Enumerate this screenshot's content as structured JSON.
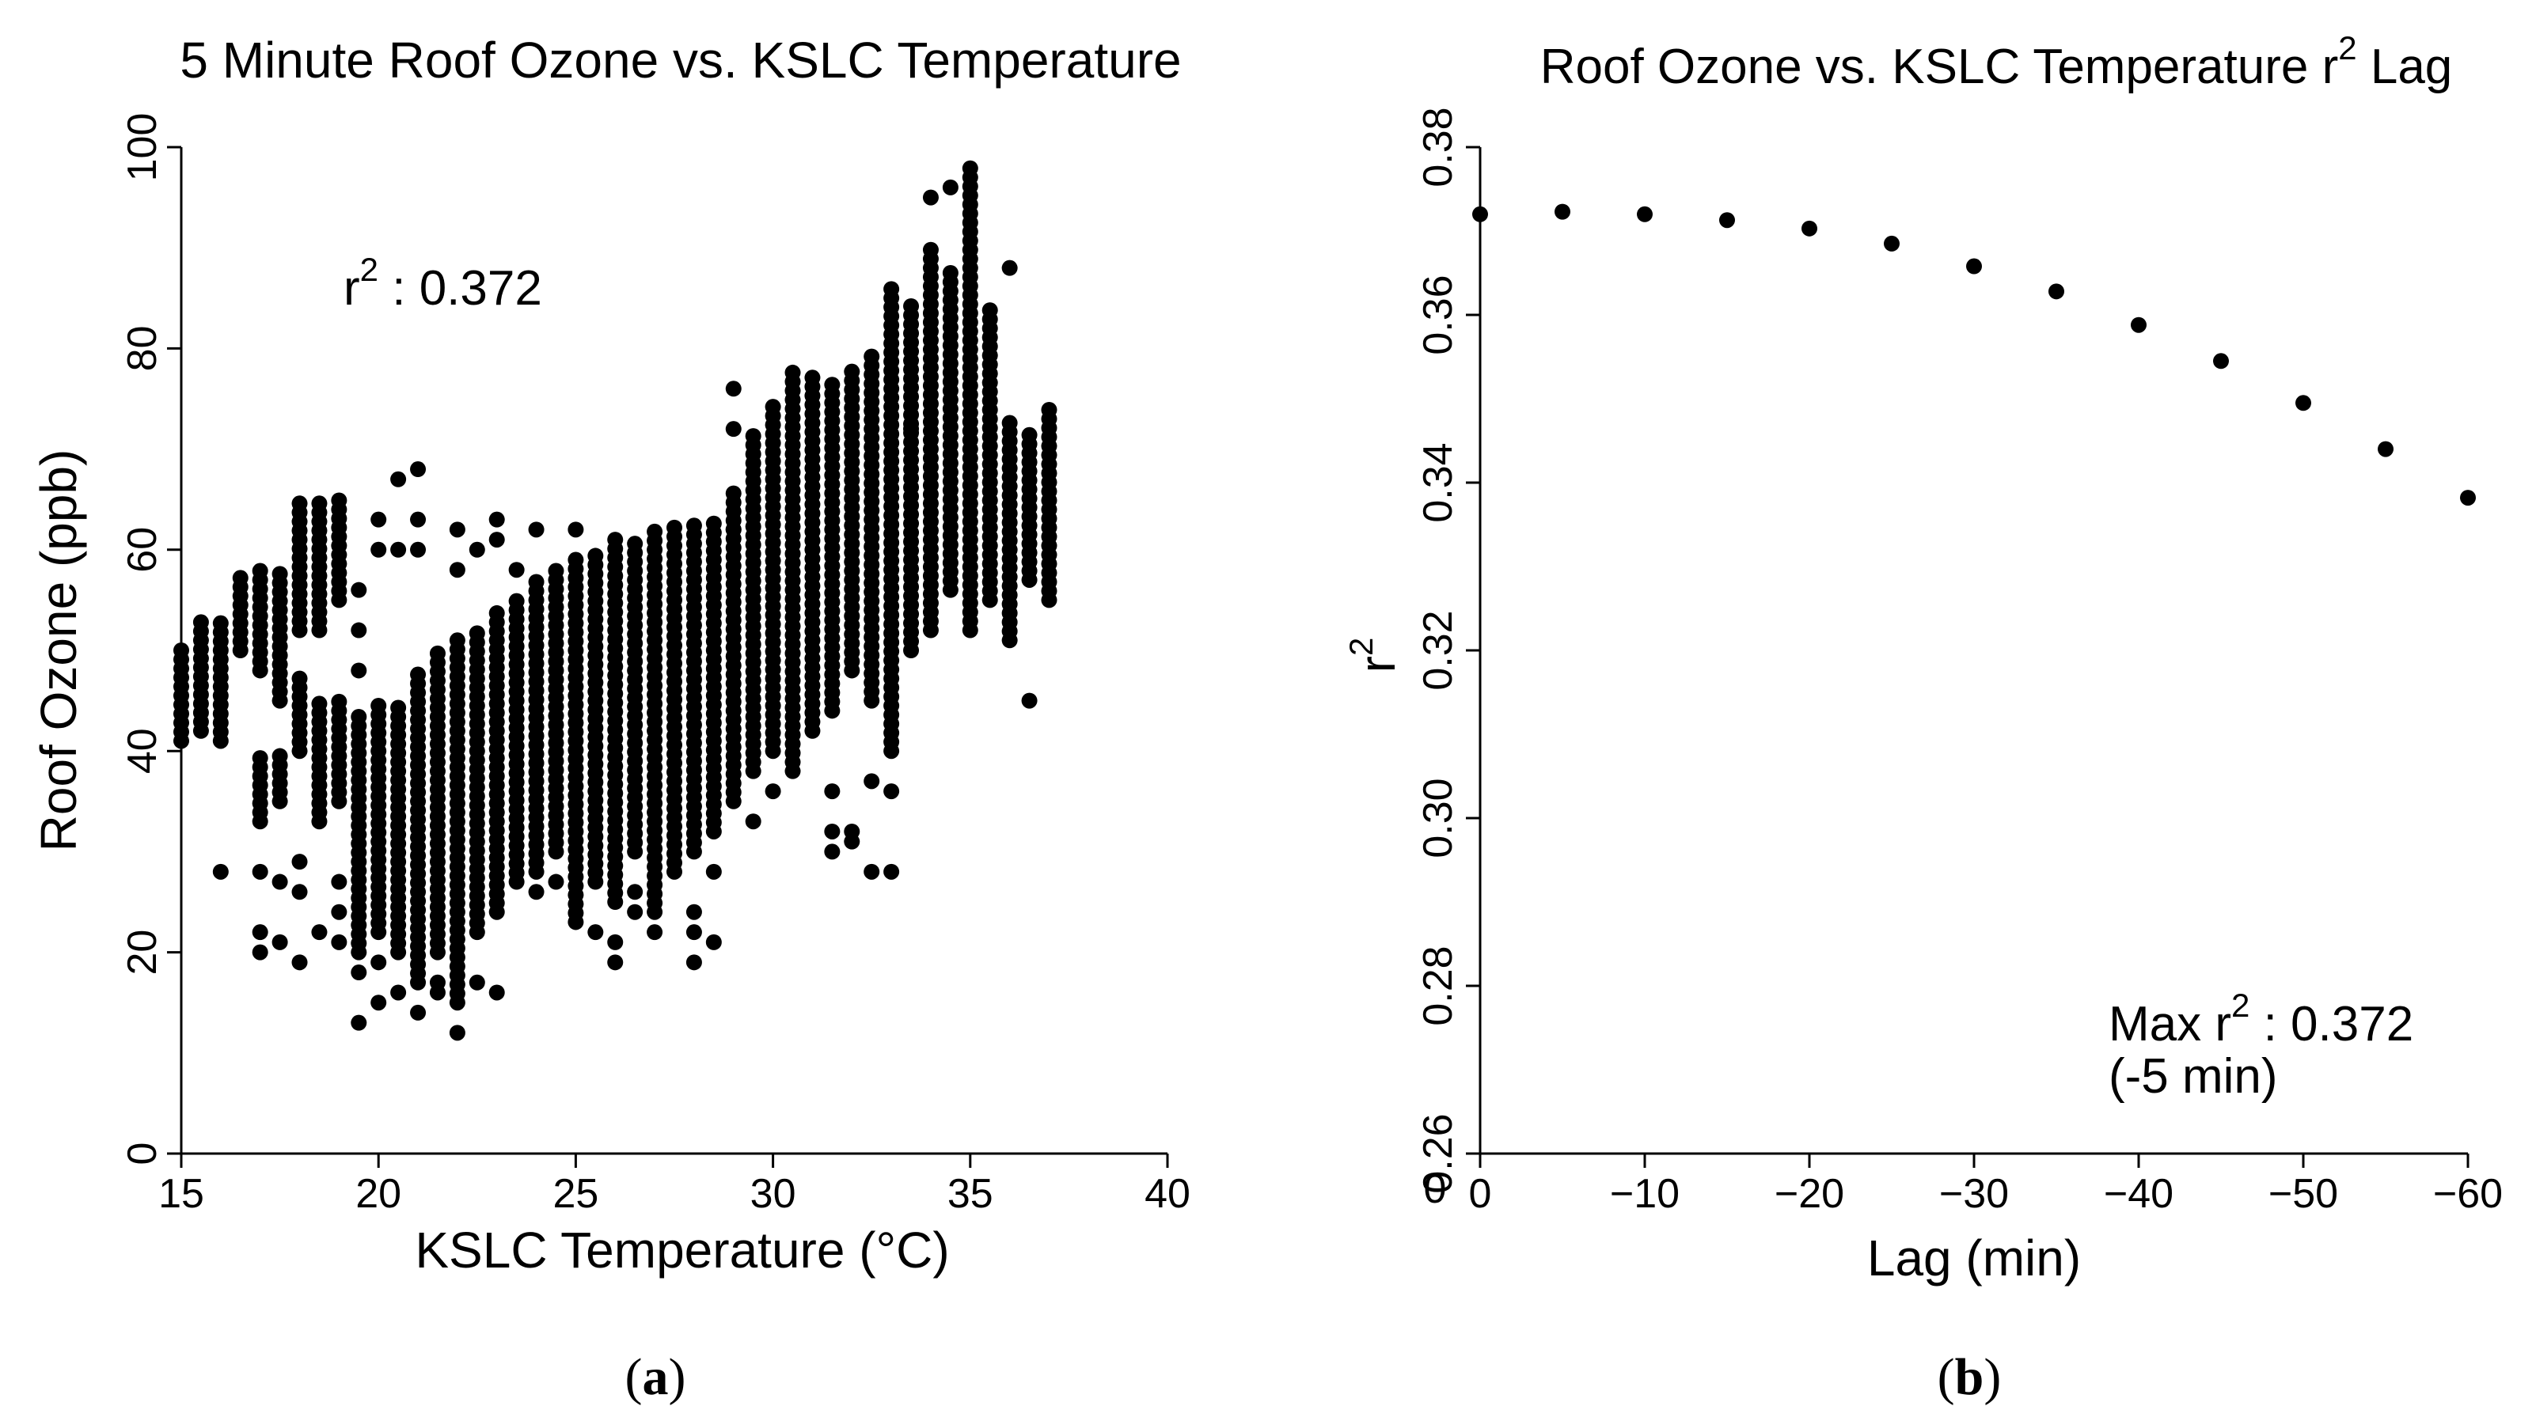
{
  "chart_data": [
    {
      "type": "scatter",
      "title": "5 Minute Roof Ozone vs. KSLC Temperature",
      "xlabel": "KSLC Temperature (°C)",
      "ylabel": "Roof Ozone (ppb)",
      "xlim": [
        15,
        40
      ],
      "ylim": [
        0,
        100
      ],
      "xticks": [
        "15",
        "20",
        "25",
        "30",
        "35",
        "40"
      ],
      "yticks": [
        "0",
        "20",
        "40",
        "60",
        "80",
        "100"
      ],
      "annotation": {
        "base": "r",
        "sup": "2",
        "rest": " : 0.372"
      },
      "panel_label": {
        "open": "(",
        "letter": "a",
        "close": ")"
      },
      "point_columns": [
        {
          "x": 15.0,
          "ranges": [
            [
              41,
              50
            ]
          ]
        },
        {
          "x": 15.5,
          "ranges": [
            [
              42,
              53
            ]
          ]
        },
        {
          "x": 16.0,
          "ranges": [
            [
              41,
              53
            ]
          ],
          "extra": [
            28
          ]
        },
        {
          "x": 16.5,
          "ranges": [
            [
              50,
              58
            ]
          ]
        },
        {
          "x": 17.0,
          "ranges": [
            [
              33,
              40
            ],
            [
              48,
              58
            ]
          ],
          "extra": [
            20,
            22,
            28
          ]
        },
        {
          "x": 17.5,
          "ranges": [
            [
              35,
              40
            ],
            [
              45,
              58
            ]
          ],
          "extra": [
            21,
            27
          ]
        },
        {
          "x": 18.0,
          "ranges": [
            [
              40,
              48
            ],
            [
              52,
              65
            ]
          ],
          "extra": [
            19,
            26,
            29
          ]
        },
        {
          "x": 18.5,
          "ranges": [
            [
              33,
              45
            ],
            [
              52,
              65
            ]
          ],
          "extra": [
            22
          ]
        },
        {
          "x": 19.0,
          "ranges": [
            [
              35,
              45
            ],
            [
              55,
              65
            ]
          ],
          "extra": [
            21,
            24,
            27
          ]
        },
        {
          "x": 19.5,
          "ranges": [
            [
              20,
              44
            ]
          ],
          "extra": [
            13,
            18,
            48,
            52,
            56
          ]
        },
        {
          "x": 20.0,
          "ranges": [
            [
              22,
              45
            ]
          ],
          "extra": [
            15,
            19,
            60,
            63
          ]
        },
        {
          "x": 20.5,
          "ranges": [
            [
              20,
              45
            ]
          ],
          "extra": [
            16,
            60,
            67
          ]
        },
        {
          "x": 21.0,
          "ranges": [
            [
              17,
              48
            ]
          ],
          "extra": [
            14,
            60,
            63,
            68
          ]
        },
        {
          "x": 21.5,
          "ranges": [
            [
              20,
              50
            ]
          ],
          "extra": [
            16,
            17
          ]
        },
        {
          "x": 22.0,
          "ranges": [
            [
              15,
              51
            ]
          ],
          "extra": [
            12,
            58,
            62
          ]
        },
        {
          "x": 22.5,
          "ranges": [
            [
              22,
              52
            ]
          ],
          "extra": [
            17,
            60
          ]
        },
        {
          "x": 23.0,
          "ranges": [
            [
              24,
              54
            ]
          ],
          "extra": [
            16,
            61,
            63
          ]
        },
        {
          "x": 23.5,
          "ranges": [
            [
              27,
              55
            ]
          ],
          "extra": [
            58
          ]
        },
        {
          "x": 24.0,
          "ranges": [
            [
              28,
              57
            ]
          ],
          "extra": [
            26,
            62
          ]
        },
        {
          "x": 24.5,
          "ranges": [
            [
              30,
              58
            ]
          ],
          "extra": [
            27
          ]
        },
        {
          "x": 25.0,
          "ranges": [
            [
              23,
              59
            ]
          ],
          "extra": [
            62
          ]
        },
        {
          "x": 25.5,
          "ranges": [
            [
              27,
              60
            ]
          ],
          "extra": [
            22
          ]
        },
        {
          "x": 26.0,
          "ranges": [
            [
              25,
              61
            ]
          ],
          "extra": [
            19,
            21
          ]
        },
        {
          "x": 26.5,
          "ranges": [
            [
              30,
              61
            ]
          ],
          "extra": [
            24,
            26
          ]
        },
        {
          "x": 27.0,
          "ranges": [
            [
              24,
              62
            ]
          ],
          "extra": [
            22
          ]
        },
        {
          "x": 27.5,
          "ranges": [
            [
              28,
              63
            ]
          ]
        },
        {
          "x": 28.0,
          "ranges": [
            [
              30,
              63
            ]
          ],
          "extra": [
            19,
            22,
            24
          ]
        },
        {
          "x": 28.5,
          "ranges": [
            [
              32,
              63
            ]
          ],
          "extra": [
            21,
            28
          ]
        },
        {
          "x": 29.0,
          "ranges": [
            [
              35,
              66
            ]
          ],
          "extra": [
            62,
            72,
            76
          ]
        },
        {
          "x": 29.5,
          "ranges": [
            [
              38,
              72
            ]
          ],
          "extra": [
            33
          ]
        },
        {
          "x": 30.0,
          "ranges": [
            [
              40,
              75
            ]
          ],
          "extra": [
            36
          ]
        },
        {
          "x": 30.5,
          "ranges": [
            [
              38,
              78
            ]
          ]
        },
        {
          "x": 31.0,
          "ranges": [
            [
              42,
              78
            ]
          ]
        },
        {
          "x": 31.5,
          "ranges": [
            [
              44,
              77
            ]
          ],
          "extra": [
            30,
            32,
            36
          ]
        },
        {
          "x": 32.0,
          "ranges": [
            [
              48,
              78
            ]
          ],
          "extra": [
            31,
            32
          ]
        },
        {
          "x": 32.5,
          "ranges": [
            [
              45,
              80
            ]
          ],
          "extra": [
            28,
            37
          ]
        },
        {
          "x": 33.0,
          "ranges": [
            [
              40,
              86
            ]
          ],
          "extra": [
            28,
            36
          ]
        },
        {
          "x": 33.5,
          "ranges": [
            [
              50,
              85
            ]
          ],
          "extra": [
            72
          ]
        },
        {
          "x": 34.0,
          "ranges": [
            [
              52,
              90
            ]
          ],
          "extra": [
            95
          ]
        },
        {
          "x": 34.5,
          "ranges": [
            [
              56,
              88
            ]
          ],
          "extra": [
            96
          ]
        },
        {
          "x": 35.0,
          "ranges": [
            [
              52,
              98
            ]
          ]
        },
        {
          "x": 35.5,
          "ranges": [
            [
              55,
              84
            ]
          ]
        },
        {
          "x": 36.0,
          "ranges": [
            [
              51,
              73
            ]
          ],
          "extra": [
            88
          ]
        },
        {
          "x": 36.5,
          "ranges": [
            [
              57,
              72
            ]
          ],
          "extra": [
            45
          ]
        },
        {
          "x": 37.0,
          "ranges": [
            [
              55,
              74
            ]
          ]
        }
      ]
    },
    {
      "type": "scatter",
      "title": {
        "base": "Roof Ozone vs. KSLC Temperature r",
        "sup": "2",
        "rest": "  Lag"
      },
      "xlabel": "Lag (min)",
      "ylabel": {
        "base": "r",
        "sup": "2"
      },
      "xlim": [
        0,
        -60
      ],
      "ylim": [
        0.26,
        0.38
      ],
      "xticks": [
        "0",
        "−10",
        "−20",
        "−30",
        "−40",
        "−50",
        "−60"
      ],
      "yticks": [
        "0.26",
        "0.28",
        "0.30",
        "0.32",
        "0.34",
        "0.36",
        "0.38"
      ],
      "x": [
        0,
        -5,
        -10,
        -15,
        -20,
        -25,
        -30,
        -35,
        -40,
        -45,
        -50,
        -55,
        -60
      ],
      "y": [
        0.372,
        0.3723,
        0.372,
        0.3713,
        0.3703,
        0.3685,
        0.3658,
        0.3628,
        0.3588,
        0.3545,
        0.3495,
        0.344,
        0.3382
      ],
      "annotation": {
        "line1_base": "Max r",
        "line1_sup": "2",
        "line1_rest": " : 0.372",
        "line2": "(-5 min)"
      },
      "extra_tick": "0",
      "panel_label": {
        "open": "(",
        "letter": "b",
        "close": ")"
      }
    }
  ]
}
